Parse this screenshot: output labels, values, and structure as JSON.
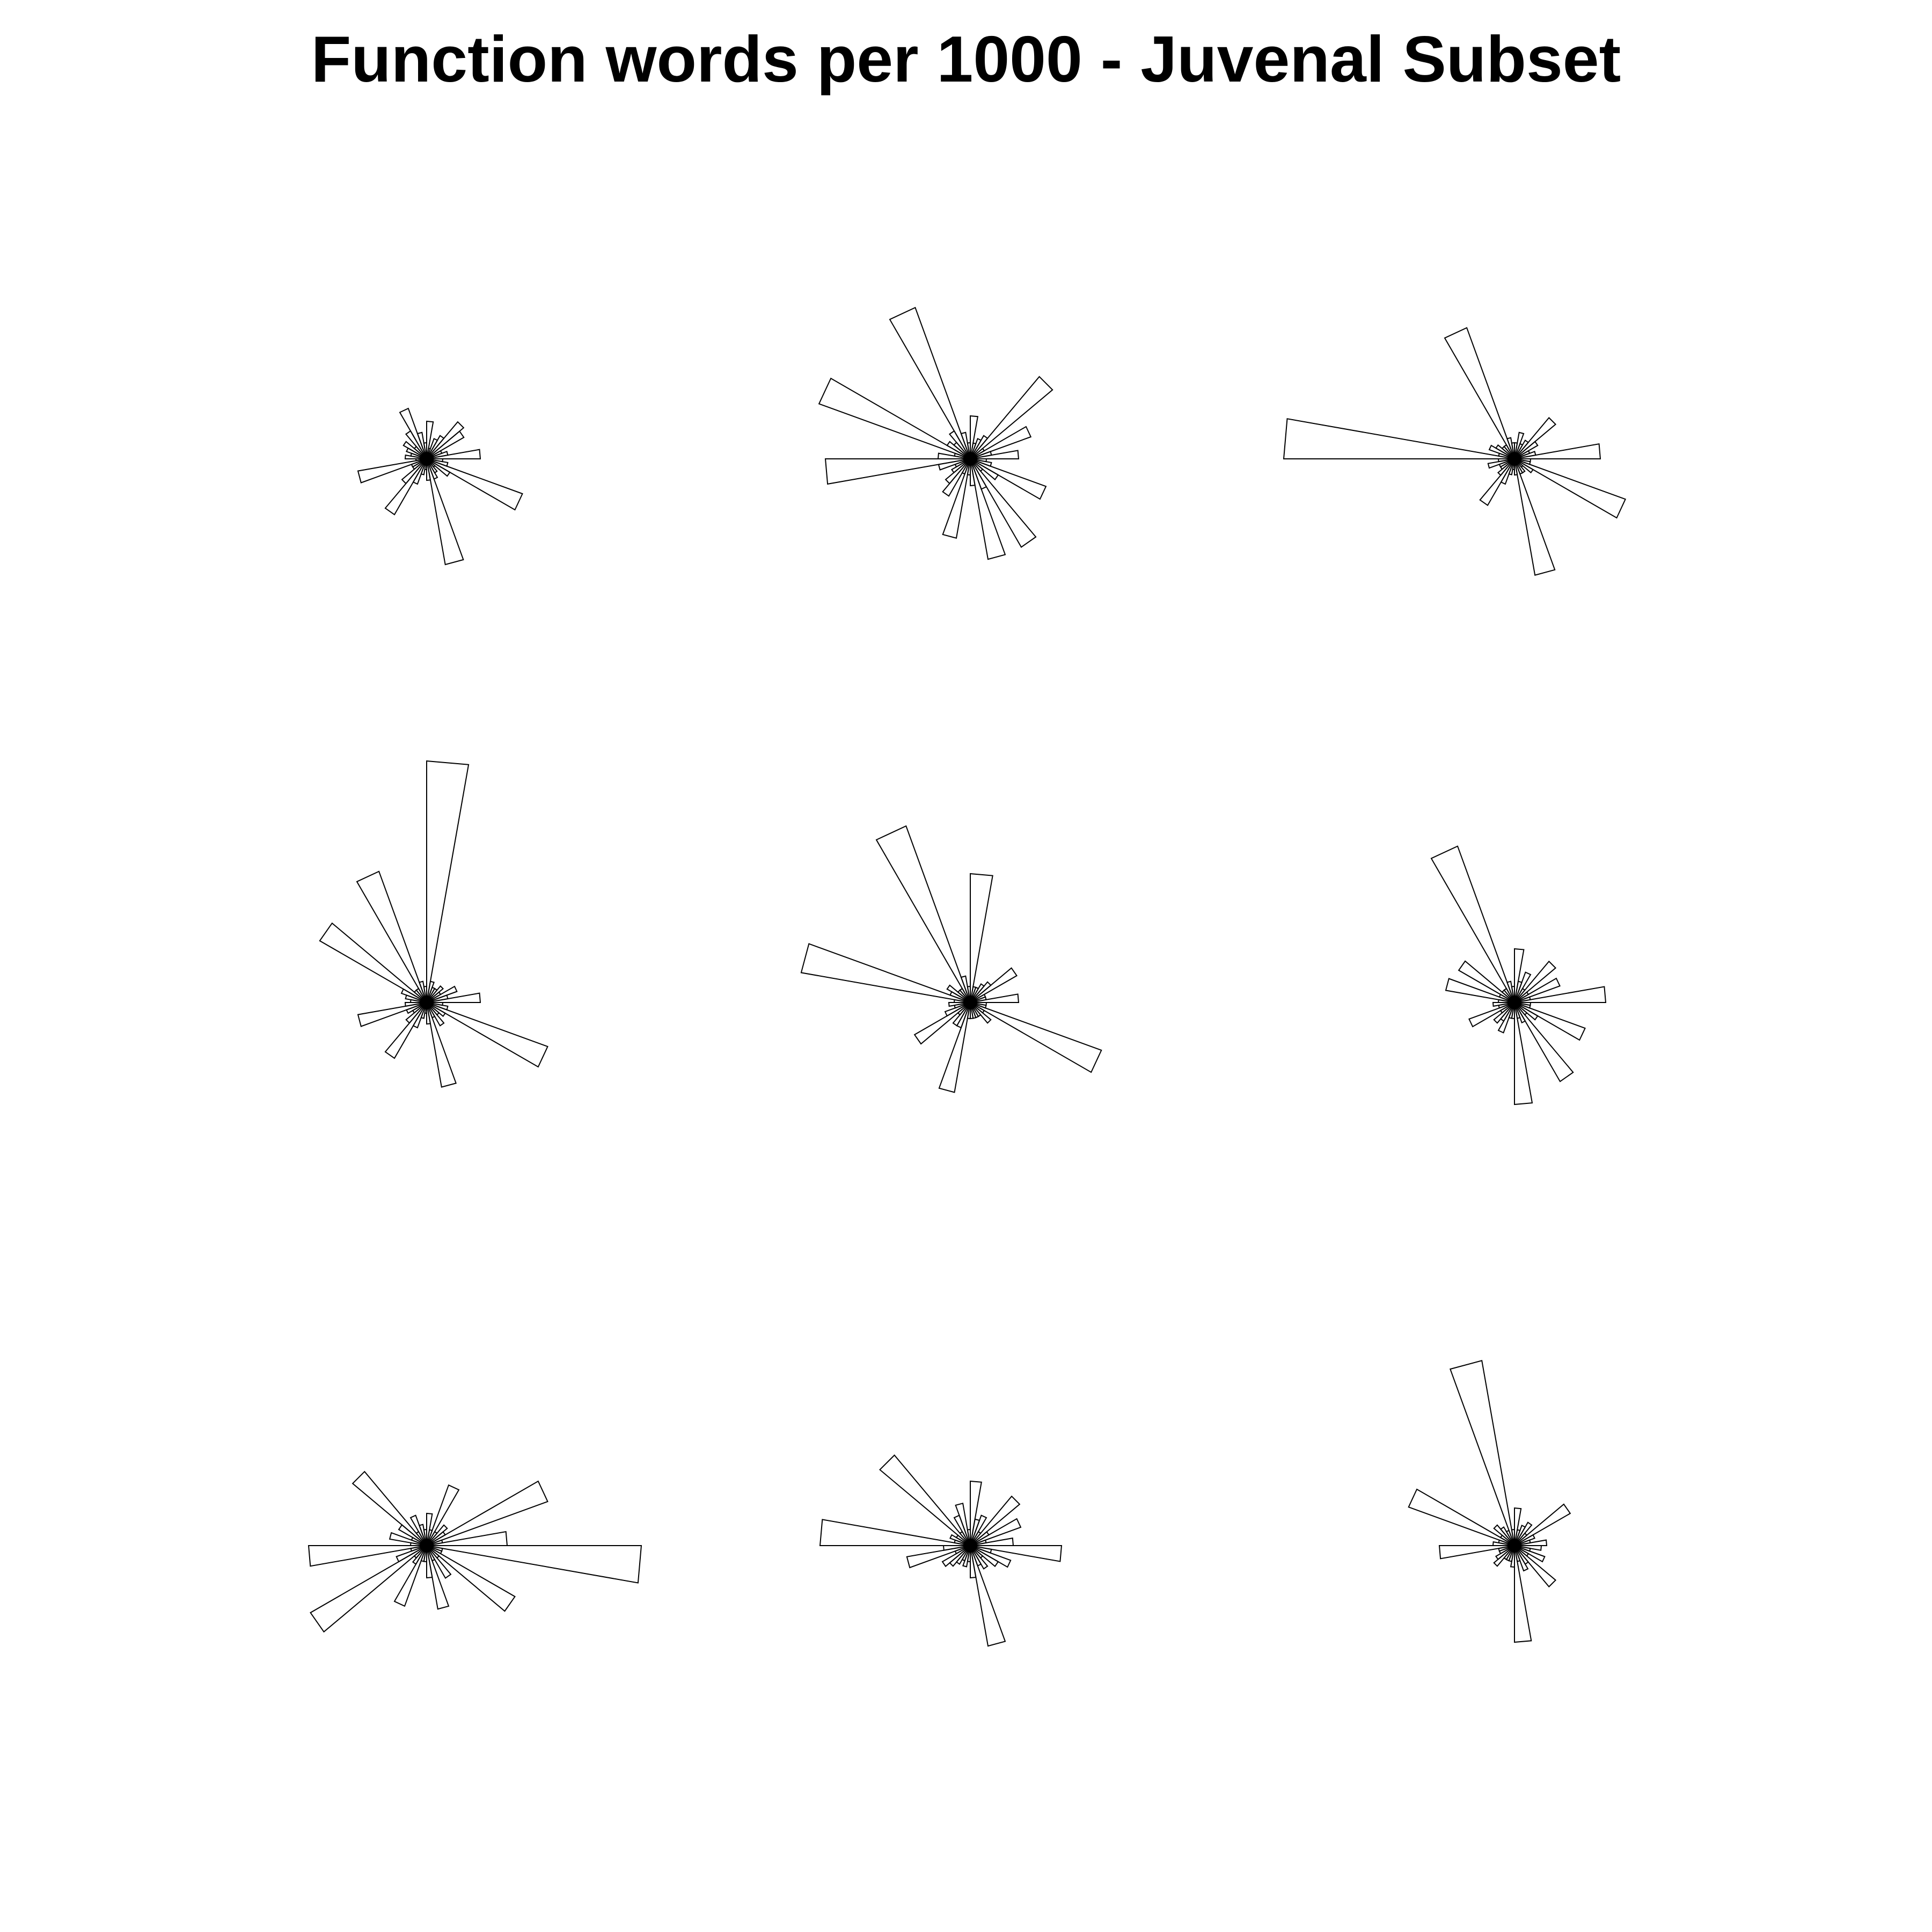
{
  "chart_data": {
    "type": "star",
    "title": "Function words per 1000 - Juvenal Subset",
    "axes_count": 36,
    "line_color": "#000000",
    "scale_max": 10,
    "stars": [
      {
        "name": "star-1",
        "values": [
          1.0,
          0.4,
          0.3,
          0.8,
          0.9,
          0.5,
          0.4,
          0.2,
          0.7,
          0.3,
          0.5,
          1.0,
          0.6,
          0.3,
          0.5,
          0.4,
          0.3,
          0.4,
          0.2,
          1.3,
          0.3,
          0.3,
          0.6,
          1.2,
          0.5,
          0.3,
          0.2,
          0.4,
          2.0,
          0.4,
          0.3,
          0.2,
          0.5,
          1.9,
          0.4,
          0.3
        ]
      },
      {
        "name": "star-2",
        "values": [
          0.9,
          0.4,
          1.2,
          0.3,
          2.0,
          0.5,
          0.4,
          0.3,
          0.8,
          0.3,
          0.5,
          3.0,
          0.6,
          0.4,
          0.5,
          3.0,
          0.3,
          0.6,
          2.7,
          0.6,
          0.3,
          0.4,
          0.6,
          0.8,
          0.3,
          1.5,
          0.3,
          0.5,
          1.9,
          0.6,
          1.9,
          0.3,
          0.6,
          1.5,
          0.4,
          0.3
        ]
      },
      {
        "name": "star-3",
        "values": [
          1.6,
          0.4,
          0.3,
          0.5,
          1.0,
          0.4,
          0.3,
          0.5,
          0.3,
          0.3,
          0.4,
          2.6,
          0.3,
          0.3,
          0.4,
          0.5,
          0.3,
          4.3,
          0.3,
          0.5,
          0.3,
          0.3,
          0.4,
          1.0,
          0.5,
          0.3,
          0.2,
          0.3,
          2.2,
          0.3,
          0.3,
          0.2,
          0.4,
          2.2,
          0.3,
          0.3
        ]
      },
      {
        "name": "star-4",
        "values": [
          1.0,
          0.4,
          0.6,
          0.3,
          0.4,
          0.3,
          0.3,
          0.4,
          4.5,
          0.3,
          0.4,
          2.6,
          0.3,
          0.3,
          2.3,
          0.5,
          0.4,
          0.3,
          0.4,
          1.3,
          0.4,
          0.3,
          0.5,
          1.2,
          0.5,
          0.3,
          0.2,
          0.4,
          1.6,
          0.3,
          0.5,
          0.3,
          0.4,
          2.4,
          0.4,
          0.3
        ]
      },
      {
        "name": "star-5",
        "values": [
          0.9,
          0.3,
          0.3,
          1.0,
          0.5,
          0.4,
          0.3,
          0.3,
          2.4,
          0.3,
          0.5,
          3.5,
          0.3,
          0.3,
          0.5,
          0.4,
          3.2,
          0.3,
          0.4,
          0.3,
          0.5,
          1.2,
          0.3,
          0.5,
          0.5,
          1.7,
          0.3,
          0.3,
          0.3,
          0.3,
          0.3,
          0.5,
          0.3,
          2.6,
          0.3,
          0.3
        ]
      },
      {
        "name": "star-6",
        "values": [
          1.7,
          0.3,
          0.9,
          0.3,
          1.0,
          0.3,
          0.6,
          0.4,
          1.0,
          0.3,
          0.4,
          3.1,
          0.3,
          0.3,
          1.2,
          0.3,
          1.3,
          0.3,
          0.4,
          0.3,
          0.9,
          0.3,
          0.5,
          0.4,
          0.6,
          0.3,
          0.3,
          1.9,
          0.3,
          0.4,
          1.7,
          0.3,
          0.5,
          1.4,
          0.3,
          0.3
        ]
      },
      {
        "name": "star-7",
        "values": [
          1.5,
          0.3,
          2.4,
          0.4,
          0.5,
          0.3,
          1.2,
          0.3,
          0.6,
          0.3,
          0.4,
          0.6,
          0.3,
          1.8,
          0.6,
          0.3,
          0.7,
          0.3,
          2.2,
          0.3,
          0.6,
          2.5,
          0.3,
          0.4,
          1.2,
          0.3,
          0.3,
          0.6,
          1.2,
          0.3,
          0.7,
          0.3,
          1.9,
          0.3,
          0.3,
          4.0
        ]
      },
      {
        "name": "star-8",
        "values": [
          0.8,
          0.3,
          1.0,
          0.4,
          1.2,
          0.3,
          0.6,
          0.5,
          1.2,
          0.3,
          0.8,
          0.6,
          0.3,
          2.2,
          0.3,
          0.4,
          0.3,
          2.8,
          0.5,
          1.2,
          0.3,
          0.6,
          0.5,
          0.4,
          0.3,
          0.4,
          0.3,
          0.6,
          1.9,
          0.4,
          0.5,
          0.3,
          0.6,
          0.8,
          0.4,
          1.7
        ]
      },
      {
        "name": "star-9",
        "values": [
          0.6,
          0.3,
          0.4,
          1.2,
          0.3,
          0.5,
          0.4,
          0.3,
          0.7,
          0.3,
          3.5,
          0.3,
          0.4,
          0.5,
          0.3,
          2.1,
          0.3,
          0.4,
          1.4,
          0.3,
          0.3,
          0.4,
          0.5,
          0.3,
          0.3,
          0.3,
          0.4,
          1.8,
          0.3,
          0.5,
          0.4,
          1.0,
          0.3,
          0.6,
          0.3,
          0.5
        ]
      }
    ]
  }
}
